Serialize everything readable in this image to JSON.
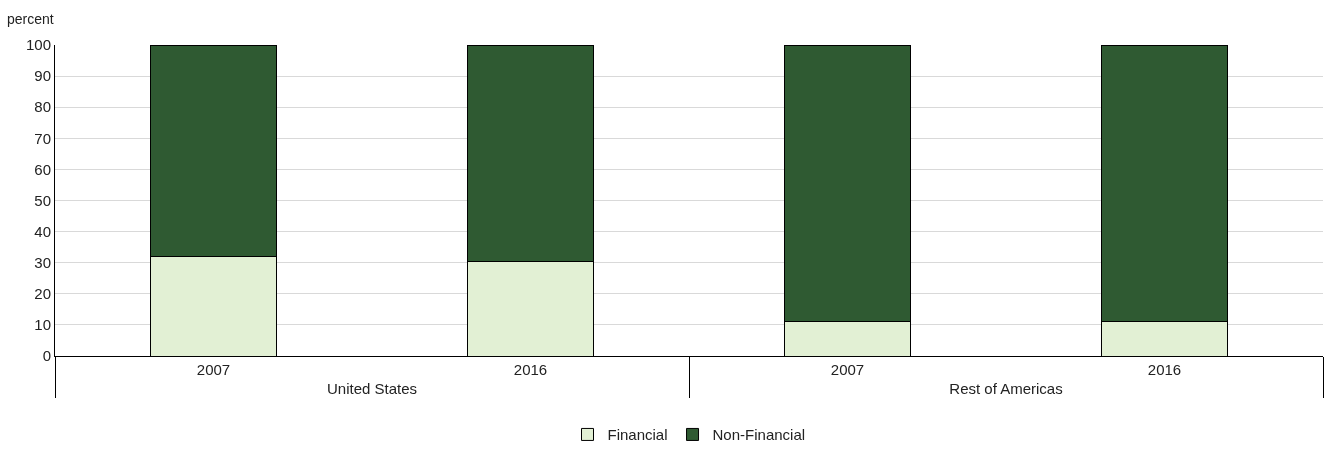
{
  "chart_data": {
    "type": "bar",
    "stacked": true,
    "ylabel": "percent",
    "categories": [
      "2007",
      "2016",
      "2007",
      "2016"
    ],
    "annotations": [
      "United States",
      "Rest of Americas"
    ],
    "series": [
      {
        "name": "Financial",
        "color": "#e2f0d4",
        "values": [
          32,
          30.5,
          11,
          11
        ]
      },
      {
        "name": "Non-Financial",
        "color": "#2f5a32",
        "values": [
          68,
          69.5,
          89,
          89
        ]
      }
    ],
    "ylim": [
      0,
      100
    ],
    "yticks": [
      0,
      10,
      20,
      30,
      40,
      50,
      60,
      70,
      80,
      90,
      100
    ],
    "grid": "y",
    "legend": "bottom"
  }
}
